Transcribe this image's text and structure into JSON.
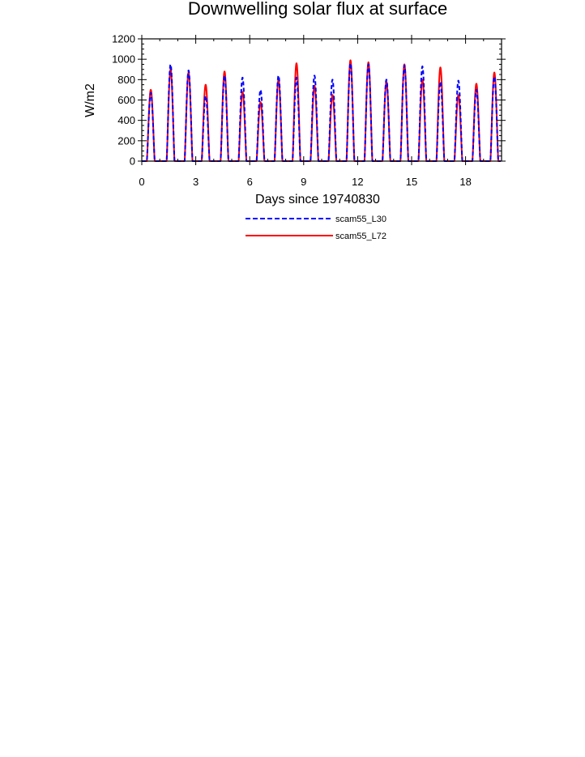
{
  "chart_data": {
    "type": "line",
    "title": "Downwelling solar flux at surface",
    "xlabel": "Days since 19740830",
    "ylabel": "W/m2",
    "xlim": [
      0,
      20
    ],
    "ylim": [
      0,
      1200
    ],
    "xticks": [
      0,
      3,
      6,
      9,
      12,
      15,
      18
    ],
    "yticks": [
      0,
      200,
      400,
      600,
      800,
      1000,
      1200
    ],
    "grid": false,
    "legend_position": "bottom-center",
    "series": [
      {
        "name": "scam55_L30",
        "color": "#0000ff",
        "line_style": "dashed",
        "x": [
          0.5,
          1.6,
          2.6,
          3.55,
          4.6,
          5.6,
          6.6,
          7.6,
          8.6,
          9.6,
          10.6,
          11.6,
          12.6,
          13.6,
          14.6,
          15.6,
          16.6,
          17.6,
          18.6,
          19.6
        ],
        "y": [
          670,
          950,
          890,
          640,
          840,
          820,
          700,
          840,
          820,
          840,
          800,
          960,
          950,
          800,
          940,
          930,
          780,
          790,
          700,
          830
        ]
      },
      {
        "name": "scam55_L72",
        "color": "#ff0000",
        "line_style": "solid",
        "x": [
          0.5,
          1.6,
          2.6,
          3.55,
          4.6,
          5.6,
          6.6,
          7.6,
          8.6,
          9.6,
          10.6,
          11.6,
          12.6,
          13.6,
          14.6,
          15.6,
          16.6,
          17.6,
          18.6,
          19.6
        ],
        "y": [
          700,
          900,
          870,
          750,
          880,
          680,
          580,
          800,
          960,
          740,
          650,
          990,
          970,
          780,
          950,
          800,
          920,
          650,
          760,
          870
        ]
      }
    ]
  }
}
